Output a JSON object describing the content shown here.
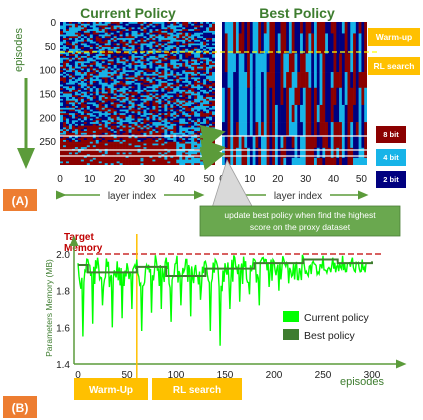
{
  "colors": {
    "heat_8bit": "#8b0000",
    "heat_4bit": "#17b4e8",
    "heat_2bit": "#00007f",
    "arrow_green": "#5b9b3a",
    "panel_label": "#ed7d31",
    "badge_orange": "#ffc000",
    "target_red": "#c00000",
    "current_line": "#00ff00",
    "best_line": "#3e7d2f",
    "callout_bg": "#6aa84f"
  },
  "chart_data": [
    {
      "type": "heatmap",
      "title": "Current Policy",
      "xlabel": "layer index",
      "ylabel": "episodes",
      "xlim": [
        0,
        52
      ],
      "ylim": [
        0,
        300
      ],
      "xticks": [
        0,
        10,
        20,
        30,
        40,
        50
      ],
      "yticks": [
        0,
        50,
        100,
        150,
        200,
        250
      ],
      "categories": [
        "8 bit",
        "4 bit",
        "2 bit"
      ],
      "description_regions": {
        "warm_up_end_episode": 60,
        "converged_from_episode": 250
      }
    },
    {
      "type": "heatmap",
      "title": "Best Policy",
      "xlabel": "layer index",
      "xlim": [
        0,
        52
      ],
      "ylim": [
        0,
        300
      ],
      "xticks": [
        0,
        10,
        20,
        30,
        40,
        50
      ],
      "yticks": [
        0,
        50,
        100,
        150,
        200,
        250
      ],
      "categories": [
        "8 bit",
        "4 bit",
        "2 bit"
      ]
    },
    {
      "type": "line",
      "ylabel": "Parameters Memory (MB)",
      "xlabel": "episodes",
      "xlim": [
        0,
        300
      ],
      "ylim": [
        1.4,
        2.0
      ],
      "xticks": [
        0,
        50,
        100,
        150,
        200,
        250,
        300
      ],
      "yticks": [
        1.4,
        1.6,
        1.8,
        2.0
      ],
      "target": 2.0,
      "warmup_end": 60,
      "series": [
        {
          "name": "Current policy",
          "x": [
            0,
            5,
            10,
            15,
            20,
            25,
            30,
            35,
            40,
            45,
            50,
            55,
            60,
            65,
            70,
            75,
            80,
            85,
            90,
            95,
            100,
            105,
            110,
            115,
            120,
            125,
            130,
            135,
            140,
            145,
            150,
            155,
            160,
            165,
            170,
            175,
            180,
            185,
            190,
            195,
            200,
            205,
            210,
            215,
            220,
            225,
            230,
            235,
            240,
            245,
            250,
            255,
            260,
            265,
            270,
            275,
            280,
            285,
            290,
            295
          ],
          "values": [
            1.95,
            1.55,
            1.97,
            1.62,
            1.98,
            1.72,
            1.93,
            1.6,
            1.96,
            1.65,
            1.95,
            1.7,
            1.97,
            1.58,
            1.94,
            1.68,
            1.96,
            1.7,
            1.98,
            1.63,
            1.95,
            1.72,
            1.97,
            1.66,
            1.94,
            1.75,
            1.96,
            1.58,
            1.97,
            1.5,
            1.95,
            1.7,
            1.98,
            1.74,
            1.93,
            1.78,
            1.97,
            1.72,
            1.95,
            1.82,
            1.96,
            1.8,
            1.97,
            1.84,
            1.95,
            1.86,
            1.98,
            1.88,
            1.96,
            1.9,
            1.99,
            1.92,
            1.98,
            1.94,
            1.99,
            1.95,
            1.98,
            1.95,
            1.97,
            1.96
          ]
        },
        {
          "name": "Best policy",
          "x": [
            0,
            10,
            40,
            60,
            90,
            130,
            180,
            230,
            265,
            300
          ],
          "values": [
            1.94,
            1.9,
            1.9,
            1.93,
            1.88,
            1.92,
            1.95,
            1.97,
            1.95,
            1.96
          ]
        }
      ]
    }
  ],
  "heatmap": {
    "current_title": "Current Policy",
    "best_title": "Best Policy",
    "ylabel": "episodes",
    "xlabel_left": "layer index",
    "xlabel_right": "layer index",
    "yticks": [
      "0",
      "50",
      "100",
      "150",
      "200",
      "250"
    ],
    "xticks": [
      "0",
      "10",
      "20",
      "30",
      "40",
      "50"
    ]
  },
  "badges": {
    "warm_up": "Warm-up",
    "rl_search": "RL search",
    "bit8": "8 bit",
    "bit4": "4 bit",
    "bit2": "2 bit"
  },
  "callout": {
    "line1": "update best policy when find the highest",
    "line2": "score on the proxy dataset"
  },
  "panels": {
    "a": "(A)",
    "b": "(B)"
  },
  "memory_chart": {
    "target_line1": "Target",
    "target_line2": "Memory",
    "ylabel": "Parameters Memory (MB)",
    "xlabel": "episodes",
    "yticks": [
      "2.0",
      "1.8",
      "1.6",
      "1.4"
    ],
    "xticks": [
      "0",
      "50",
      "100",
      "150",
      "200",
      "250",
      "300"
    ],
    "legend_current": "Current policy",
    "legend_best": "Best policy",
    "warmup_badge": "Warm-Up",
    "rl_badge": "RL search"
  }
}
